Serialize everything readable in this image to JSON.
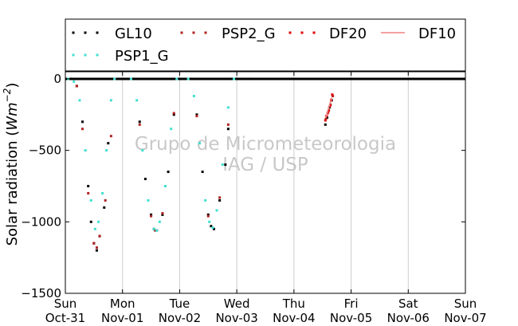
{
  "chart_data": {
    "type": "scatter",
    "ylabel": "Solar radiation (Wm^-2)",
    "ylim": [
      -1500,
      50
    ],
    "xlim": [
      0,
      7
    ],
    "y_ticks": [
      {
        "value": 0,
        "label": "0"
      },
      {
        "value": -500,
        "label": "−500"
      },
      {
        "value": -1000,
        "label": "−1000"
      },
      {
        "value": -1500,
        "label": "−1500"
      }
    ],
    "x_ticks": [
      {
        "value": 0,
        "day": "Sun",
        "date": "Oct-31"
      },
      {
        "value": 1,
        "day": "Mon",
        "date": "Nov-01"
      },
      {
        "value": 2,
        "day": "Tue",
        "date": "Nov-02"
      },
      {
        "value": 3,
        "day": "Wed",
        "date": "Nov-03"
      },
      {
        "value": 4,
        "day": "Thu",
        "date": "Nov-04"
      },
      {
        "value": 5,
        "day": "Fri",
        "date": "Nov-05"
      },
      {
        "value": 6,
        "day": "Sat",
        "date": "Nov-06"
      },
      {
        "value": 7,
        "day": "Sun",
        "date": "Nov-07"
      }
    ],
    "grid": "vertical",
    "legend_position": "top",
    "series": [
      {
        "name": "GL10",
        "style": "dotted",
        "color": "#000000",
        "x": [
          0.1,
          0.2,
          0.3,
          0.4,
          0.45,
          0.5,
          0.55,
          0.6,
          0.68,
          0.75,
          0.85,
          1.2,
          1.3,
          1.4,
          1.5,
          1.55,
          1.6,
          1.7,
          1.8,
          1.9,
          1.97,
          2.2,
          2.3,
          2.4,
          2.5,
          2.55,
          2.6,
          2.7,
          2.8,
          2.85,
          3.0,
          3.2,
          4.55,
          4.58,
          4.62,
          4.66
        ],
        "y": [
          0,
          -50,
          -300,
          -750,
          -1000,
          -1150,
          -1200,
          -1100,
          -900,
          -450,
          0,
          0,
          -300,
          -700,
          -950,
          -1050,
          -1060,
          -950,
          -650,
          -250,
          0,
          0,
          -250,
          -650,
          -950,
          -1030,
          -1050,
          -850,
          -600,
          -350,
          0,
          0,
          -320,
          -270,
          -200,
          -150
        ]
      },
      {
        "name": "PSP2_G",
        "style": "dotted",
        "color": "#b22222",
        "x": [
          0.2,
          0.3,
          0.4,
          0.5,
          0.55,
          0.6,
          0.7,
          0.8,
          0.86,
          1.3,
          1.5,
          1.57,
          1.7,
          1.9,
          2.3,
          2.5,
          2.58,
          2.7,
          2.85,
          4.56,
          4.6,
          4.64,
          4.68
        ],
        "y": [
          -50,
          -350,
          -800,
          -1150,
          -1180,
          -1100,
          -850,
          -400,
          0,
          -320,
          -960,
          -1060,
          -940,
          -240,
          -260,
          -960,
          -1040,
          -830,
          -320,
          -280,
          -230,
          -180,
          -120
        ]
      },
      {
        "name": "DF20",
        "style": "dotted",
        "color": "#e00000",
        "x": [
          4.55,
          4.57,
          4.59,
          4.61,
          4.63,
          4.65,
          4.67
        ],
        "y": [
          -290,
          -260,
          -240,
          -220,
          -190,
          -150,
          -110
        ]
      },
      {
        "name": "DF10",
        "style": "line",
        "color": "#f08080",
        "x": [
          4.56,
          4.66
        ],
        "y": [
          -270,
          -130
        ]
      },
      {
        "name": "PSP1_G",
        "style": "dotted",
        "color": "#40e0d0",
        "x": [
          0.05,
          0.15,
          0.25,
          0.35,
          0.45,
          0.52,
          0.58,
          0.65,
          0.72,
          0.8,
          0.86,
          1.15,
          1.25,
          1.35,
          1.45,
          1.55,
          1.6,
          1.65,
          1.75,
          1.85,
          1.95,
          2.15,
          2.25,
          2.35,
          2.45,
          2.52,
          2.58,
          2.65,
          2.75,
          2.85,
          2.95
        ],
        "y": [
          0,
          -20,
          -150,
          -500,
          -850,
          -1050,
          -1000,
          -800,
          -500,
          -150,
          0,
          0,
          -150,
          -500,
          -850,
          -1050,
          -1060,
          -1000,
          -750,
          -350,
          0,
          0,
          -120,
          -450,
          -850,
          -1000,
          -1040,
          -920,
          -600,
          -200,
          0
        ]
      }
    ],
    "zero_line": 0
  },
  "watermark": {
    "line1": "Grupo de Micrometeorologia",
    "line2": "IAG / USP"
  }
}
